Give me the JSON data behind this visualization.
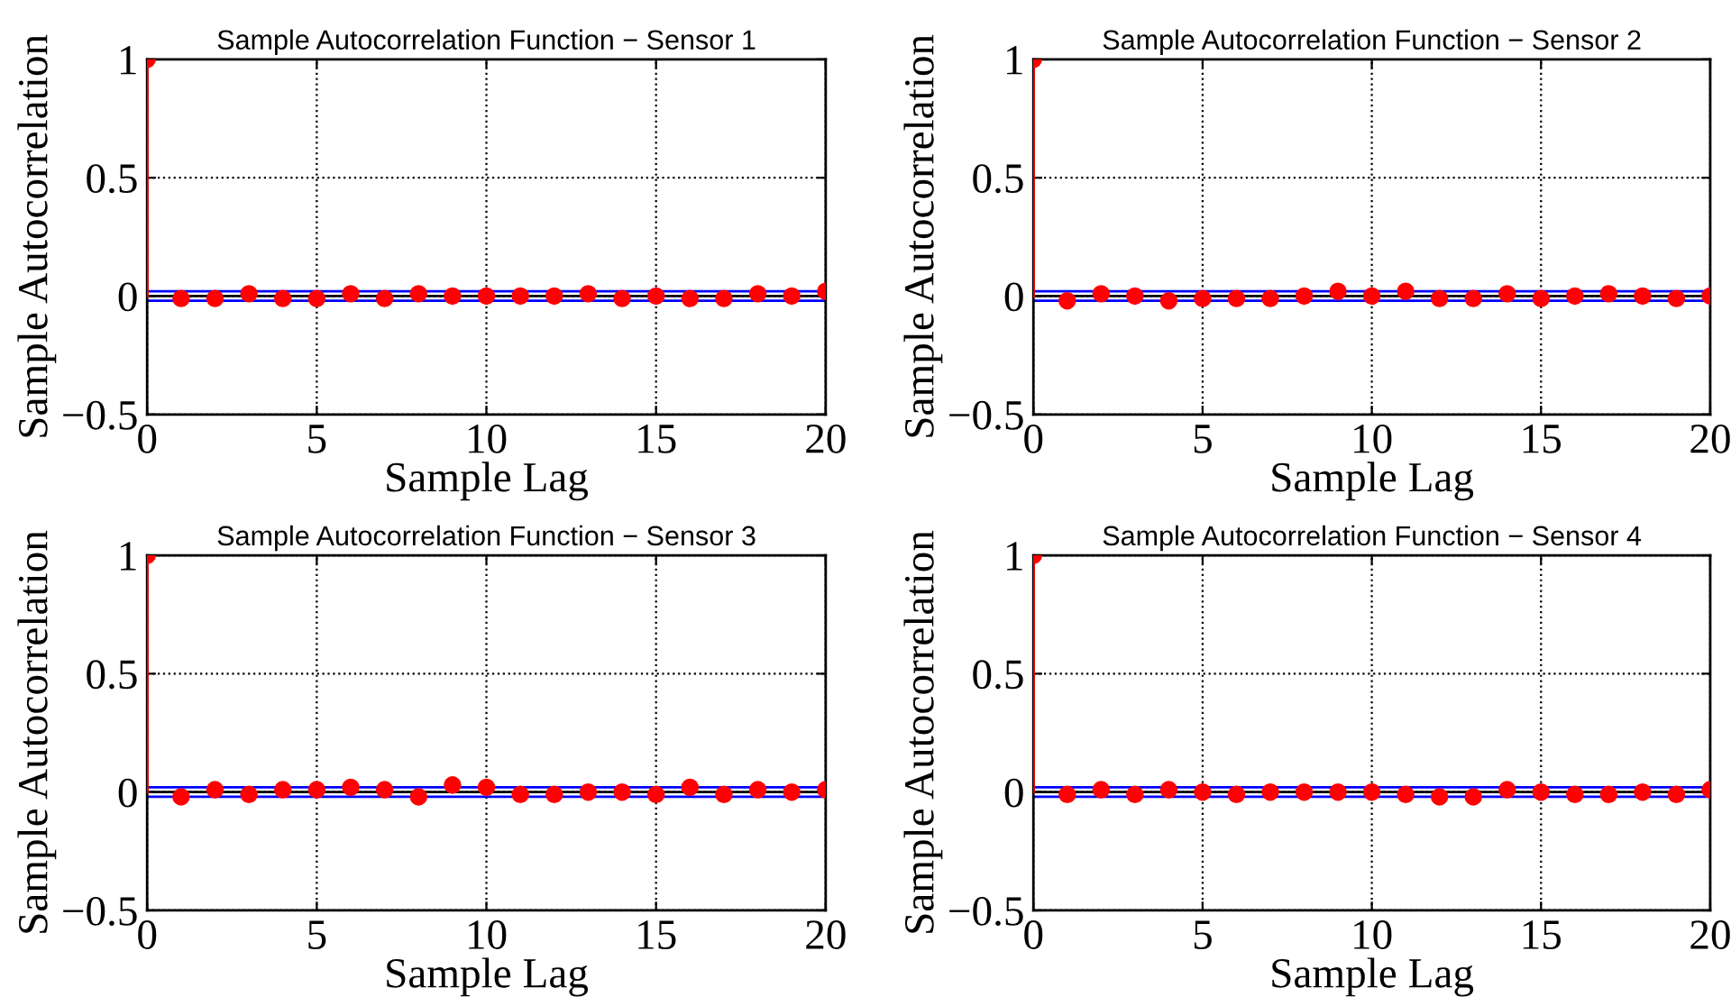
{
  "chart_data": [
    {
      "type": "lollipop",
      "title": "Sample Autocorrelation Function − Sensor 1",
      "xlabel": "Sample Lag",
      "ylabel": "Sample Autocorrelation",
      "x": [
        0,
        1,
        2,
        3,
        4,
        5,
        6,
        7,
        8,
        9,
        10,
        11,
        12,
        13,
        14,
        15,
        16,
        17,
        18,
        19,
        20
      ],
      "series": [
        {
          "color": "#ff0000",
          "values": [
            1,
            -0.01,
            -0.01,
            0.01,
            -0.01,
            -0.01,
            0.01,
            -0.01,
            0.01,
            0,
            0,
            0,
            0,
            0.01,
            -0.01,
            0,
            -0.01,
            -0.01,
            0.01,
            0,
            0.02
          ]
        }
      ],
      "xlim": [
        0,
        20
      ],
      "xticks": [
        0,
        5,
        10,
        15,
        20
      ],
      "ylim": [
        -0.5,
        1
      ],
      "yticks": [
        -0.5,
        0,
        0.5,
        1
      ],
      "grid": true,
      "marker": "circle",
      "ref_lines": [
        {
          "axis": "y",
          "value": 0,
          "color": "#000000"
        },
        {
          "axis": "y",
          "value": 0.02,
          "color": "#0000ff"
        },
        {
          "axis": "y",
          "value": -0.02,
          "color": "#0000ff"
        }
      ]
    },
    {
      "type": "lollipop",
      "title": "Sample Autocorrelation Function − Sensor 2",
      "xlabel": "Sample Lag",
      "ylabel": "Sample Autocorrelation",
      "x": [
        0,
        1,
        2,
        3,
        4,
        5,
        6,
        7,
        8,
        9,
        10,
        11,
        12,
        13,
        14,
        15,
        16,
        17,
        18,
        19,
        20
      ],
      "series": [
        {
          "color": "#ff0000",
          "values": [
            1,
            -0.02,
            0.01,
            0,
            -0.02,
            -0.01,
            -0.01,
            -0.01,
            0,
            0.02,
            0,
            0.02,
            -0.01,
            -0.01,
            0.01,
            -0.01,
            0,
            0.01,
            0,
            -0.01,
            0
          ]
        }
      ],
      "xlim": [
        0,
        20
      ],
      "xticks": [
        0,
        5,
        10,
        15,
        20
      ],
      "ylim": [
        -0.5,
        1
      ],
      "yticks": [
        -0.5,
        0,
        0.5,
        1
      ],
      "grid": true,
      "marker": "circle",
      "ref_lines": [
        {
          "axis": "y",
          "value": 0,
          "color": "#000000"
        },
        {
          "axis": "y",
          "value": 0.02,
          "color": "#0000ff"
        },
        {
          "axis": "y",
          "value": -0.02,
          "color": "#0000ff"
        }
      ]
    },
    {
      "type": "lollipop",
      "title": "Sample Autocorrelation Function − Sensor 3",
      "xlabel": "Sample Lag",
      "ylabel": "Sample Autocorrelation",
      "x": [
        0,
        1,
        2,
        3,
        4,
        5,
        6,
        7,
        8,
        9,
        10,
        11,
        12,
        13,
        14,
        15,
        16,
        17,
        18,
        19,
        20
      ],
      "series": [
        {
          "color": "#ff0000",
          "values": [
            1,
            -0.02,
            0.01,
            -0.01,
            0.01,
            0.01,
            0.02,
            0.01,
            -0.02,
            0.03,
            0.02,
            -0.01,
            -0.01,
            0,
            0,
            -0.01,
            0.02,
            -0.01,
            0.01,
            0,
            0.01
          ]
        }
      ],
      "xlim": [
        0,
        20
      ],
      "xticks": [
        0,
        5,
        10,
        15,
        20
      ],
      "ylim": [
        -0.5,
        1
      ],
      "yticks": [
        -0.5,
        0,
        0.5,
        1
      ],
      "grid": true,
      "marker": "circle",
      "ref_lines": [
        {
          "axis": "y",
          "value": 0,
          "color": "#000000"
        },
        {
          "axis": "y",
          "value": 0.02,
          "color": "#0000ff"
        },
        {
          "axis": "y",
          "value": -0.02,
          "color": "#0000ff"
        }
      ]
    },
    {
      "type": "lollipop",
      "title": "Sample Autocorrelation Function − Sensor 4",
      "xlabel": "Sample Lag",
      "ylabel": "Sample Autocorrelation",
      "x": [
        0,
        1,
        2,
        3,
        4,
        5,
        6,
        7,
        8,
        9,
        10,
        11,
        12,
        13,
        14,
        15,
        16,
        17,
        18,
        19,
        20
      ],
      "series": [
        {
          "color": "#ff0000",
          "values": [
            1,
            -0.01,
            0.01,
            -0.01,
            0.01,
            0,
            -0.01,
            0,
            0,
            0,
            0,
            -0.01,
            -0.02,
            -0.02,
            0.01,
            0,
            -0.01,
            -0.01,
            0,
            -0.01,
            0.01
          ]
        }
      ],
      "xlim": [
        0,
        20
      ],
      "xticks": [
        0,
        5,
        10,
        15,
        20
      ],
      "ylim": [
        -0.5,
        1
      ],
      "yticks": [
        -0.5,
        0,
        0.5,
        1
      ],
      "grid": true,
      "marker": "circle",
      "ref_lines": [
        {
          "axis": "y",
          "value": 0,
          "color": "#000000"
        },
        {
          "axis": "y",
          "value": 0.02,
          "color": "#0000ff"
        },
        {
          "axis": "y",
          "value": -0.02,
          "color": "#0000ff"
        }
      ]
    }
  ]
}
